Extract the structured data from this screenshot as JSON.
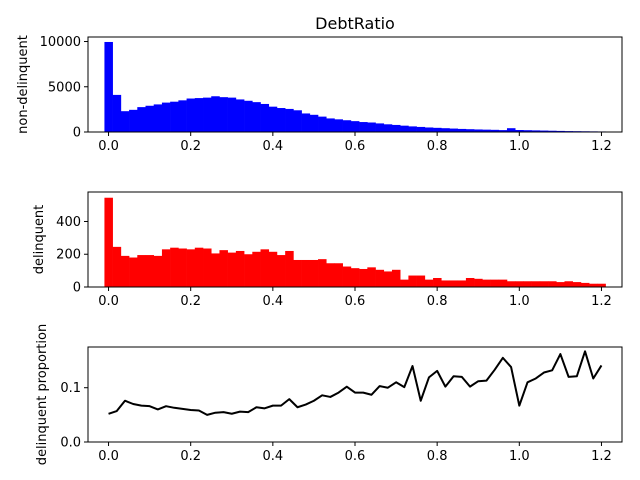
{
  "chart_data": [
    {
      "type": "bar",
      "title": "DebtRatio",
      "xlabel": "",
      "ylabel": "non-delinquent",
      "color": "#0000ff",
      "xlim": [
        -0.05,
        1.25
      ],
      "ylim": [
        0,
        10500
      ],
      "xticks": [
        "0.0",
        "0.2",
        "0.4",
        "0.6",
        "0.8",
        "1.0",
        "1.2"
      ],
      "yticks": [
        "0",
        "5000",
        "10000"
      ],
      "bin_start": -0.01,
      "bin_width": 0.02,
      "values": [
        9950,
        4100,
        2300,
        2450,
        2750,
        2900,
        3050,
        3250,
        3350,
        3500,
        3700,
        3750,
        3800,
        3950,
        3850,
        3800,
        3600,
        3450,
        3300,
        3100,
        2800,
        2650,
        2550,
        2400,
        2050,
        1900,
        1700,
        1500,
        1400,
        1300,
        1200,
        1100,
        1050,
        950,
        850,
        780,
        700,
        620,
        560,
        500,
        460,
        420,
        380,
        340,
        310,
        280,
        260,
        240,
        210,
        420,
        220,
        200,
        180,
        160,
        140,
        120,
        100,
        90,
        80,
        70,
        60
      ]
    },
    {
      "type": "bar",
      "title": "",
      "xlabel": "",
      "ylabel": "delinquent",
      "color": "#ff0000",
      "xlim": [
        -0.05,
        1.25
      ],
      "ylim": [
        0,
        580
      ],
      "xticks": [
        "0.0",
        "0.2",
        "0.4",
        "0.6",
        "0.8",
        "1.0",
        "1.2"
      ],
      "yticks": [
        "0",
        "200",
        "400"
      ],
      "bin_start": -0.01,
      "bin_width": 0.02,
      "values": [
        545,
        245,
        190,
        180,
        195,
        195,
        190,
        230,
        240,
        235,
        230,
        240,
        235,
        205,
        225,
        210,
        220,
        200,
        215,
        230,
        215,
        195,
        220,
        165,
        165,
        165,
        170,
        145,
        145,
        125,
        115,
        110,
        120,
        105,
        95,
        105,
        45,
        70,
        70,
        45,
        55,
        40,
        40,
        40,
        55,
        50,
        45,
        45,
        45,
        35,
        35,
        35,
        35,
        35,
        35,
        30,
        35,
        30,
        25,
        20,
        20
      ]
    },
    {
      "type": "line",
      "title": "",
      "xlabel": "",
      "ylabel": "delinquent proportion",
      "color": "#000000",
      "xlim": [
        -0.05,
        1.25
      ],
      "ylim": [
        0,
        0.175
      ],
      "xticks": [
        "0.0",
        "0.2",
        "0.4",
        "0.6",
        "0.8",
        "1.0",
        "1.2"
      ],
      "yticks": [
        "0.0",
        "0.1"
      ],
      "x": [
        0.0,
        0.02,
        0.04,
        0.06,
        0.08,
        0.1,
        0.12,
        0.14,
        0.16,
        0.18,
        0.2,
        0.22,
        0.24,
        0.26,
        0.28,
        0.3,
        0.32,
        0.34,
        0.36,
        0.38,
        0.4,
        0.42,
        0.44,
        0.46,
        0.48,
        0.5,
        0.52,
        0.54,
        0.56,
        0.58,
        0.6,
        0.62,
        0.64,
        0.66,
        0.68,
        0.7,
        0.72,
        0.74,
        0.76,
        0.78,
        0.8,
        0.82,
        0.84,
        0.86,
        0.88,
        0.9,
        0.92,
        0.94,
        0.96,
        0.98,
        1.0,
        1.02,
        1.04,
        1.06,
        1.08,
        1.1,
        1.12,
        1.14,
        1.16,
        1.18,
        1.2
      ],
      "y": [
        0.052,
        0.057,
        0.076,
        0.07,
        0.067,
        0.066,
        0.06,
        0.066,
        0.063,
        0.061,
        0.059,
        0.058,
        0.05,
        0.054,
        0.055,
        0.052,
        0.056,
        0.055,
        0.064,
        0.062,
        0.067,
        0.067,
        0.079,
        0.064,
        0.069,
        0.076,
        0.086,
        0.083,
        0.091,
        0.102,
        0.091,
        0.091,
        0.087,
        0.103,
        0.1,
        0.11,
        0.101,
        0.14,
        0.076,
        0.119,
        0.131,
        0.102,
        0.121,
        0.12,
        0.102,
        0.112,
        0.113,
        0.133,
        0.155,
        0.138,
        0.067,
        0.11,
        0.117,
        0.128,
        0.132,
        0.162,
        0.12,
        0.121,
        0.167,
        0.117,
        0.141
      ]
    }
  ]
}
